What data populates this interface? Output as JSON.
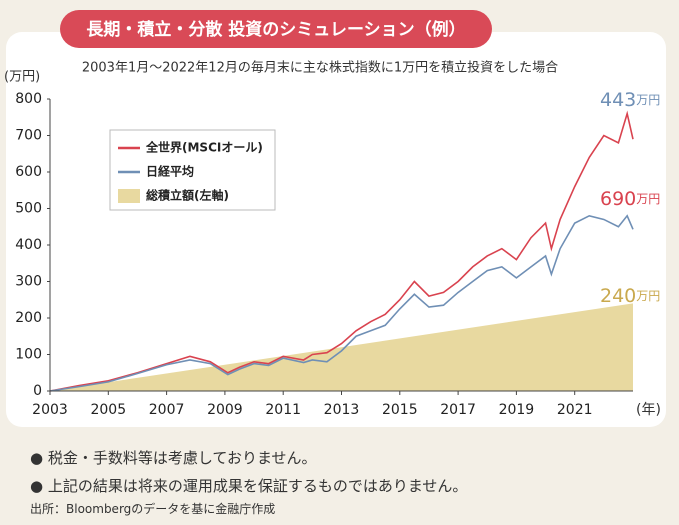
{
  "chart_data": {
    "type": "line",
    "title": "長期・積立・分散 投資のシミュレーション（例）",
    "subtitle": "2003年1月～2022年12月の毎月末に主な株式指数に1万円を積立投資をした場合",
    "y_label": "(万円)",
    "x_label": "(年)",
    "xlim": [
      2003,
      2023
    ],
    "xticks": [
      2003,
      2005,
      2007,
      2009,
      2011,
      2013,
      2015,
      2017,
      2019,
      2021
    ],
    "ylim": [
      0,
      800
    ],
    "yticks": [
      0,
      100,
      200,
      300,
      400,
      500,
      600,
      700,
      800
    ],
    "series": [
      {
        "name": "総積立額(左軸)",
        "color": "#e8d9a0",
        "kind": "area",
        "end_label": {
          "value": "240",
          "unit": "万円"
        },
        "label_color": "#c9a94e",
        "x": [
          2003,
          2023
        ],
        "values": [
          0,
          240
        ]
      },
      {
        "name": "全世界(MSCIオール)",
        "color": "#d9434f",
        "kind": "line",
        "end_label": {
          "value": "690",
          "unit": "万円"
        },
        "label_color": "#d9434f",
        "x": [
          2003,
          2004,
          2005,
          2006,
          2007,
          2007.8,
          2008.5,
          2009.1,
          2009.5,
          2010,
          2010.5,
          2011,
          2011.7,
          2012,
          2012.5,
          2013,
          2013.5,
          2014,
          2014.5,
          2015,
          2015.5,
          2016,
          2016.5,
          2017,
          2017.5,
          2018,
          2018.5,
          2019,
          2019.5,
          2020,
          2020.2,
          2020.5,
          2021,
          2021.5,
          2022,
          2022.5,
          2022.8,
          2023
        ],
        "values": [
          0,
          15,
          28,
          50,
          75,
          95,
          80,
          50,
          65,
          80,
          75,
          95,
          85,
          100,
          105,
          130,
          165,
          190,
          210,
          250,
          300,
          260,
          270,
          300,
          340,
          370,
          390,
          360,
          420,
          460,
          390,
          470,
          560,
          640,
          700,
          680,
          760,
          690
        ]
      },
      {
        "name": "日経平均",
        "color": "#6f8fb5",
        "kind": "line",
        "end_label": {
          "value": "443",
          "unit": "万円"
        },
        "label_color": "#6f8fb5",
        "x": [
          2003,
          2004,
          2005,
          2006,
          2007,
          2007.8,
          2008.5,
          2009.1,
          2009.5,
          2010,
          2010.5,
          2011,
          2011.7,
          2012,
          2012.5,
          2013,
          2013.5,
          2014,
          2014.5,
          2015,
          2015.5,
          2016,
          2016.5,
          2017,
          2017.5,
          2018,
          2018.5,
          2019,
          2019.5,
          2020,
          2020.2,
          2020.5,
          2021,
          2021.5,
          2022,
          2022.5,
          2022.8,
          2023
        ],
        "values": [
          0,
          12,
          25,
          48,
          72,
          85,
          75,
          45,
          60,
          75,
          70,
          90,
          78,
          85,
          80,
          110,
          150,
          165,
          180,
          225,
          265,
          230,
          235,
          270,
          300,
          330,
          340,
          310,
          340,
          370,
          320,
          390,
          460,
          480,
          470,
          450,
          480,
          443
        ]
      }
    ],
    "legend_order": [
      1,
      2,
      0
    ]
  },
  "notes": [
    "税金・手数料等は考慮しておりません。",
    "上記の結果は将来の運用成果を保証するものではありません。"
  ],
  "source": "出所：Bloombergのデータを基に金融庁作成"
}
